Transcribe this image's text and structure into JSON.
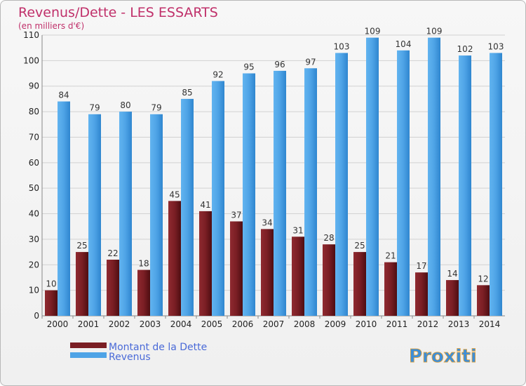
{
  "chart_data": {
    "type": "bar",
    "title": "Revenus/Dette - LES ESSARTS",
    "subtitle": "(en milliers d'€)",
    "categories": [
      "2000",
      "2001",
      "2002",
      "2003",
      "2004",
      "2005",
      "2006",
      "2007",
      "2008",
      "2009",
      "2010",
      "2011",
      "2012",
      "2013",
      "2014"
    ],
    "series": [
      {
        "name": "Montant de la Dette",
        "color": "#7a1e24",
        "values": [
          10,
          25,
          22,
          18,
          45,
          41,
          37,
          34,
          31,
          28,
          25,
          21,
          17,
          14,
          12
        ]
      },
      {
        "name": "Revenus",
        "color": "#4ea3e6",
        "values": [
          84,
          79,
          80,
          79,
          85,
          92,
          95,
          96,
          97,
          103,
          109,
          104,
          109,
          102,
          103
        ]
      }
    ],
    "ylim": [
      0,
      110
    ],
    "yticks": [
      0,
      10,
      20,
      30,
      40,
      50,
      60,
      70,
      80,
      90,
      100,
      110
    ],
    "grid": true,
    "legend_position": "bottom-left"
  },
  "branding": {
    "logo_text": "Proxiti"
  }
}
